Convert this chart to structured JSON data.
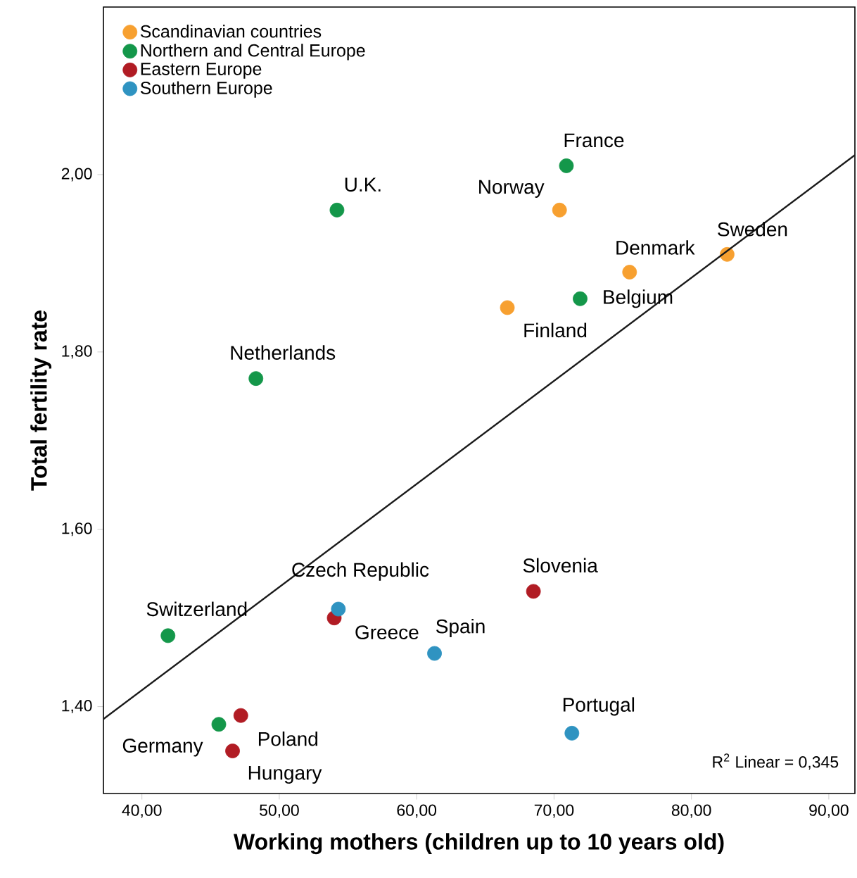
{
  "chart_data": {
    "type": "scatter",
    "xlabel": "Working mothers (children up to 10 years old)",
    "ylabel": "Total fertility rate",
    "xlim": [
      37.2,
      91.9
    ],
    "ylim": [
      1.302,
      2.189
    ],
    "xticks": [
      {
        "value": 40,
        "label": "40,00"
      },
      {
        "value": 50,
        "label": "50,00"
      },
      {
        "value": 60,
        "label": "60,00"
      },
      {
        "value": 70,
        "label": "70,00"
      },
      {
        "value": 80,
        "label": "80,00"
      },
      {
        "value": 90,
        "label": "90,00"
      }
    ],
    "yticks": [
      {
        "value": 1.4,
        "label": "1,40"
      },
      {
        "value": 1.6,
        "label": "1,60"
      },
      {
        "value": 1.8,
        "label": "1,80"
      },
      {
        "value": 2.0,
        "label": "2,00"
      }
    ],
    "legend": "top left",
    "series": [
      {
        "name": "Scandinavian countries",
        "color": "#f7a030",
        "marker": "circle",
        "x": [
          70.4,
          82.6,
          75.5,
          66.6
        ],
        "values": [
          1.96,
          1.91,
          1.89,
          1.85
        ]
      },
      {
        "name": "Northern and Central Europe",
        "color": "#14974a",
        "marker": "circle",
        "x": [
          70.9,
          54.2,
          71.9,
          48.3,
          41.9,
          45.6
        ],
        "values": [
          2.01,
          1.96,
          1.86,
          1.77,
          1.48,
          1.38
        ]
      },
      {
        "name": "Eastern Europe",
        "color": "#b11c24",
        "marker": "circle",
        "x": [
          68.5,
          54.0,
          47.2,
          46.6
        ],
        "values": [
          1.53,
          1.5,
          1.39,
          1.35
        ]
      },
      {
        "name": "Southern Europe",
        "color": "#2f93c1",
        "marker": "circle",
        "x": [
          54.3,
          61.3,
          71.3
        ],
        "values": [
          1.51,
          1.46,
          1.37
        ]
      },
      {
        "type": "line",
        "color": "#1a1a1a",
        "line_style": "solid",
        "marker": "none",
        "x": [
          37.2,
          91.9
        ],
        "values": [
          1.386,
          2.022
        ]
      }
    ],
    "annotations": [
      {
        "text": "France",
        "x": 70.9,
        "y": 2.01
      },
      {
        "text": "Norway",
        "x": 70.4,
        "y": 1.96
      },
      {
        "text": "U.K.",
        "x": 54.2,
        "y": 1.96
      },
      {
        "text": "Sweden",
        "x": 82.6,
        "y": 1.91
      },
      {
        "text": "Denmark",
        "x": 75.5,
        "y": 1.89
      },
      {
        "text": "Belgium",
        "x": 71.9,
        "y": 1.86
      },
      {
        "text": "Finland",
        "x": 66.6,
        "y": 1.85
      },
      {
        "text": "Netherlands",
        "x": 48.3,
        "y": 1.77
      },
      {
        "text": "Slovenia",
        "x": 68.5,
        "y": 1.53
      },
      {
        "text": "Czech Republic",
        "x": 54.0,
        "y": 1.5
      },
      {
        "text": "Greece",
        "x": 54.3,
        "y": 1.51
      },
      {
        "text": "Spain",
        "x": 61.3,
        "y": 1.46
      },
      {
        "text": "Switzerland",
        "x": 41.9,
        "y": 1.48
      },
      {
        "text": "Portugal",
        "x": 71.3,
        "y": 1.37
      },
      {
        "text": "Germany",
        "x": 45.6,
        "y": 1.38
      },
      {
        "text": "Poland",
        "x": 47.2,
        "y": 1.39
      },
      {
        "text": "Hungary",
        "x": 46.6,
        "y": 1.35
      },
      "R$^{2}$ Linear = 0,345"
    ]
  }
}
